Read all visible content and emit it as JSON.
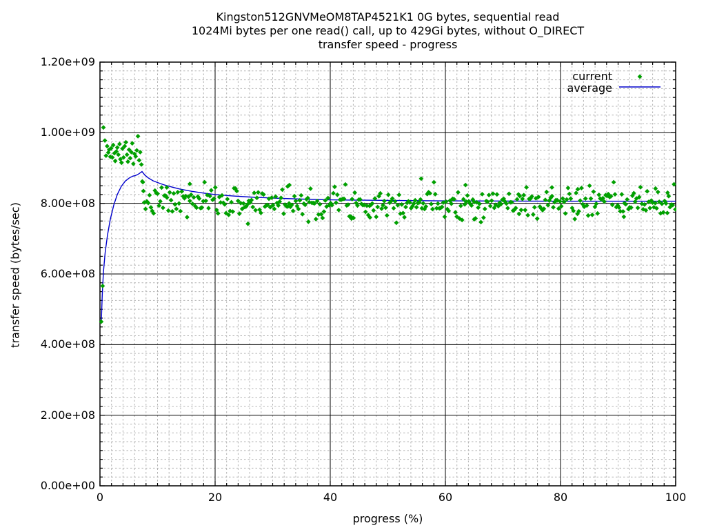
{
  "page": {
    "background": "#ffffff"
  },
  "chart_data": {
    "type": "scatter",
    "title_lines": [
      "Kingston512GNVMeOM8TAP4521K1 0G bytes, sequential read",
      "1024Mi bytes per one read() call, up to 429Gi bytes, without O_DIRECT",
      "transfer speed - progress"
    ],
    "xlabel": "progress (%)",
    "ylabel": "transfer speed (bytes/sec)",
    "xlim": [
      0,
      100
    ],
    "ylim": [
      0,
      1200000000.0
    ],
    "grid": {
      "major_color": "#000000",
      "minor_color": "#b3b3b3",
      "minor_dash": "2.5,3"
    },
    "x_ticks": {
      "values": [
        0,
        20,
        40,
        60,
        80,
        100
      ],
      "labels": [
        "0",
        "20",
        "40",
        "60",
        "80",
        "100"
      ],
      "minor_step": 2
    },
    "y_ticks": {
      "values": [
        0,
        200000000.0,
        400000000.0,
        600000000.0,
        800000000.0,
        1000000000.0,
        1200000000.0
      ],
      "labels": [
        "0.00e+00",
        "2.00e+08",
        "4.00e+08",
        "6.00e+08",
        "8.00e+08",
        "1.00e+09",
        "1.20e+09"
      ],
      "minor_step": 25000000.0
    },
    "legend": {
      "position": "top-right",
      "entries": [
        {
          "label": "current",
          "type": "points",
          "marker": "diamond",
          "color": "#00a000"
        },
        {
          "label": "average",
          "type": "line",
          "color": "#0000cc"
        }
      ]
    },
    "series": [
      {
        "name": "current",
        "type": "scatter",
        "marker": "diamond",
        "color": "#00a000",
        "points_explicit": [
          [
            0.23,
            465000000.0
          ],
          [
            0.47,
            566000000.0
          ],
          [
            0.6,
            1015000000.0
          ],
          [
            0.85,
            978000000.0
          ],
          [
            1.05,
            935000000.0
          ],
          [
            1.25,
            962000000.0
          ],
          [
            1.45,
            944000000.0
          ],
          [
            1.6,
            952000000.0
          ],
          [
            1.8,
            932000000.0
          ],
          [
            1.95,
            956000000.0
          ],
          [
            2.15,
            930000000.0
          ],
          [
            2.3,
            965000000.0
          ],
          [
            2.5,
            942000000.0
          ],
          [
            2.65,
            920000000.0
          ],
          [
            2.85,
            947000000.0
          ],
          [
            3.0,
            958000000.0
          ],
          [
            3.2,
            938000000.0
          ],
          [
            3.4,
            968000000.0
          ],
          [
            3.55,
            925000000.0
          ],
          [
            3.75,
            915000000.0
          ],
          [
            3.9,
            955000000.0
          ],
          [
            4.1,
            930000000.0
          ],
          [
            4.3,
            962000000.0
          ],
          [
            4.5,
            973000000.0
          ],
          [
            4.7,
            938000000.0
          ],
          [
            4.85,
            918000000.0
          ],
          [
            5.05,
            952000000.0
          ],
          [
            5.25,
            928000000.0
          ],
          [
            5.45,
            945000000.0
          ],
          [
            5.6,
            970000000.0
          ],
          [
            5.8,
            912000000.0
          ],
          [
            6.0,
            940000000.0
          ],
          [
            6.2,
            933000000.0
          ],
          [
            6.4,
            950000000.0
          ],
          [
            6.6,
            990000000.0
          ],
          [
            6.8,
            922000000.0
          ],
          [
            7.0,
            945000000.0
          ],
          [
            7.2,
            910000000.0
          ],
          [
            7.35,
            862000000.0
          ],
          [
            7.55,
            835000000.0
          ]
        ],
        "outliers": [
          [
            11.6,
            845000000.0
          ],
          [
            15.6,
            855000000.0
          ],
          [
            25.7,
            742000000.0
          ],
          [
            32.6,
            848000000.0
          ],
          [
            32.9,
            852000000.0
          ],
          [
            36.2,
            748000000.0
          ],
          [
            43.7,
            757000000.0
          ],
          [
            46.9,
            760000000.0
          ],
          [
            55.8,
            870000000.0
          ],
          [
            63.5,
            852000000.0
          ],
          [
            65.0,
            755000000.0
          ],
          [
            72.8,
            770000000.0
          ],
          [
            78.5,
            845000000.0
          ],
          [
            83.0,
            840000000.0
          ],
          [
            91.0,
            762000000.0
          ],
          [
            96.5,
            842000000.0
          ],
          [
            98.6,
            830000000.0
          ]
        ],
        "steady_band": {
          "x_start": 7.45,
          "x_end": 100,
          "x_step": 0.233,
          "mean_start": 804000000.0,
          "mean_end": 800000000.0,
          "stddev": 21000000.0,
          "min": 745000000.0,
          "max": 860000000.0,
          "seed": 7
        }
      },
      {
        "name": "average",
        "type": "line",
        "color": "#0000cc",
        "points": [
          [
            0.23,
            462000000.0
          ],
          [
            0.4,
            540000000.0
          ],
          [
            0.6,
            605000000.0
          ],
          [
            0.9,
            660000000.0
          ],
          [
            1.3,
            710000000.0
          ],
          [
            1.8,
            755000000.0
          ],
          [
            2.4,
            795000000.0
          ],
          [
            3.0,
            825000000.0
          ],
          [
            3.7,
            848000000.0
          ],
          [
            4.4,
            863000000.0
          ],
          [
            5.1,
            872000000.0
          ],
          [
            5.7,
            877000000.0
          ],
          [
            6.2,
            879000000.0
          ],
          [
            6.7,
            883000000.0
          ],
          [
            7.3,
            890000000.0
          ],
          [
            7.8,
            880000000.0
          ],
          [
            8.4,
            872000000.0
          ],
          [
            9.2,
            864000000.0
          ],
          [
            10,
            859000000.0
          ],
          [
            11,
            853000000.0
          ],
          [
            12.5,
            846000000.0
          ],
          [
            14,
            840000000.0
          ],
          [
            16,
            834000000.0
          ],
          [
            18,
            829000000.0
          ],
          [
            20,
            825000000.0
          ],
          [
            23,
            821000000.0
          ],
          [
            26,
            818000000.0
          ],
          [
            30,
            815000000.0
          ],
          [
            35,
            812000000.0
          ],
          [
            40,
            810000000.0
          ],
          [
            46,
            809000000.0
          ],
          [
            52,
            808000000.0
          ],
          [
            60,
            807000000.0
          ],
          [
            70,
            806500000.0
          ],
          [
            80,
            806000000.0
          ],
          [
            90,
            806000000.0
          ],
          [
            100,
            806000000.0
          ]
        ]
      }
    ]
  }
}
